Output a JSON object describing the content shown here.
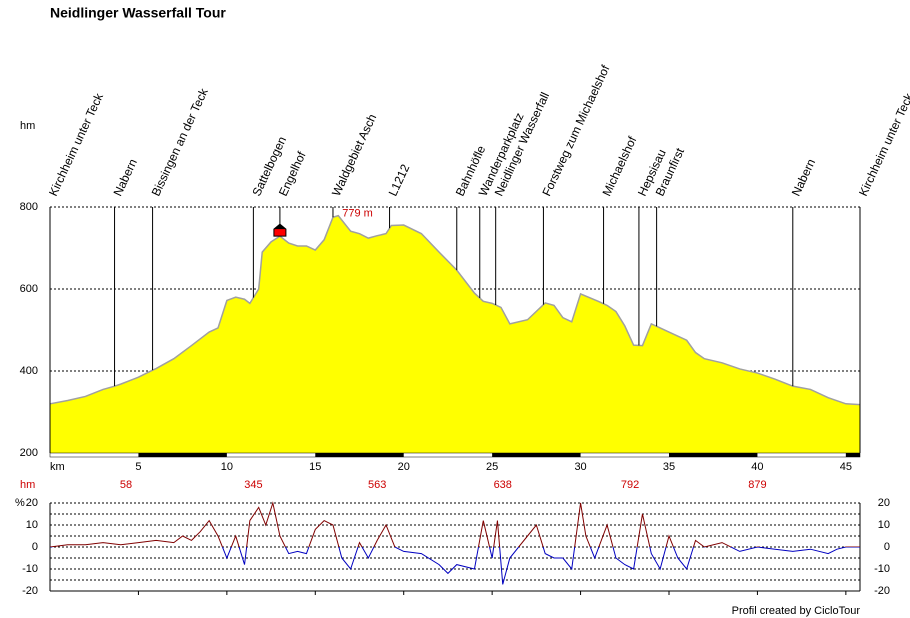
{
  "chart_data": [
    {
      "type": "area",
      "title": "Neidlinger Wasserfall Tour",
      "y_unit": "hm",
      "x_unit": "km",
      "x": [
        0,
        1,
        2,
        3,
        3.65,
        4,
        5,
        5.8,
        6,
        7,
        8,
        9,
        9.5,
        10,
        10.5,
        11,
        11.3,
        11.8,
        12,
        12.5,
        13,
        13.5,
        14,
        14.5,
        15,
        15.5,
        16,
        16.3,
        17,
        17.5,
        18,
        18.5,
        19,
        19.3,
        20,
        21,
        22,
        23,
        24,
        24.5,
        25,
        25.5,
        26,
        27,
        28,
        28.5,
        29,
        29.5,
        30,
        31,
        31.5,
        32,
        32.5,
        33,
        33.5,
        34,
        34.5,
        35,
        36,
        36.5,
        37,
        38,
        39,
        40,
        41,
        42,
        43,
        44,
        45,
        45.8
      ],
      "values": [
        320,
        328,
        338,
        355,
        363,
        368,
        385,
        402,
        406,
        430,
        462,
        495,
        505,
        572,
        580,
        575,
        565,
        600,
        690,
        715,
        729,
        712,
        705,
        705,
        695,
        720,
        775,
        779,
        741,
        735,
        724,
        730,
        735,
        755,
        756,
        735,
        690,
        646,
        590,
        570,
        565,
        555,
        515,
        525,
        566,
        560,
        530,
        520,
        588,
        570,
        560,
        545,
        510,
        463,
        462,
        515,
        505,
        495,
        475,
        445,
        430,
        420,
        405,
        395,
        380,
        363,
        355,
        335,
        320,
        318
      ],
      "color": "#ffff00",
      "line_color": "#a0a0a0",
      "xlim": [
        0,
        45.8
      ],
      "xticks": [
        5,
        10,
        15,
        20,
        25,
        30,
        35,
        40,
        45
      ],
      "ylim": [
        200,
        800
      ],
      "yticks": [
        200,
        400,
        600,
        800
      ],
      "grid": true,
      "max_label": {
        "x": 16.3,
        "value": 779,
        "label": "779 m"
      },
      "marker": {
        "x": 13,
        "value": 729,
        "color": "#ff0000"
      },
      "waypoints": [
        {
          "name": "Kirchheim unter Teck",
          "x": 0
        },
        {
          "name": "Nabern",
          "x": 3.65
        },
        {
          "name": "Bissingen an der Teck",
          "x": 5.8
        },
        {
          "name": "Sattelbogen",
          "x": 11.5
        },
        {
          "name": "Engelhof",
          "x": 13.0
        },
        {
          "name": "Waldgebiet Asch",
          "x": 16.0
        },
        {
          "name": "L1212",
          "x": 19.2
        },
        {
          "name": "Bahnhöfle",
          "x": 23.0
        },
        {
          "name": "Wanderparkplatz",
          "x": 24.3
        },
        {
          "name": "Neidlinger Wasserfall",
          "x": 25.2
        },
        {
          "name": "Forstweg zum Michaelshof",
          "x": 27.9
        },
        {
          "name": "Michaelshof",
          "x": 31.3
        },
        {
          "name": "Hepsisau",
          "x": 33.3
        },
        {
          "name": "Braunfirst",
          "x": 34.3
        },
        {
          "name": "Nabern",
          "x": 42.0
        },
        {
          "name": "Kirchheim unter Teck",
          "x": 45.8
        }
      ],
      "climb": {
        "label": "hm",
        "x": [
          4.3,
          11.5,
          18.5,
          25.6,
          32.8,
          40
        ],
        "values": [
          58,
          345,
          563,
          638,
          792,
          879
        ],
        "color": "#cc0000"
      }
    },
    {
      "type": "line",
      "y_unit": "%",
      "x": [
        0,
        1,
        2,
        3,
        4,
        5,
        6,
        7,
        7.5,
        8,
        8.5,
        9,
        9.5,
        10,
        10.5,
        11,
        11.3,
        11.8,
        12.2,
        12.6,
        13,
        13.5,
        14,
        14.5,
        15,
        15.5,
        16,
        16.5,
        17,
        17.5,
        18,
        18.5,
        19,
        19.5,
        20,
        21,
        22,
        22.5,
        23,
        24,
        24.5,
        25,
        25.3,
        25.6,
        26,
        26.5,
        27,
        27.5,
        28,
        28.5,
        29,
        29.5,
        30,
        30.3,
        30.8,
        31.5,
        32,
        32.5,
        33,
        33.5,
        34,
        34.5,
        35,
        35.5,
        36,
        36.5,
        37,
        38,
        39,
        40,
        41,
        42,
        43,
        44,
        44.5,
        45,
        45.8
      ],
      "values": [
        0,
        1,
        1,
        2,
        1,
        2,
        3,
        2,
        5,
        3,
        7,
        12,
        5,
        -5,
        5,
        -8,
        12,
        18,
        10,
        20,
        5,
        -3,
        -2,
        -3,
        8,
        12,
        10,
        -5,
        -10,
        2,
        -5,
        3,
        10,
        0,
        -2,
        -3,
        -8,
        -12,
        -8,
        -10,
        12,
        -5,
        12,
        -17,
        -5,
        0,
        5,
        10,
        -3,
        -5,
        -5,
        -10,
        20,
        5,
        -5,
        10,
        -5,
        -8,
        -10,
        15,
        -3,
        -10,
        5,
        -5,
        -10,
        3,
        0,
        2,
        -2,
        0,
        -1,
        -2,
        -1,
        -3,
        -1,
        0,
        0
      ],
      "color_positive": "#800000",
      "color_negative": "#0000c0",
      "xlim": [
        0,
        45.8
      ],
      "xticks": [
        5,
        10,
        15,
        20,
        25,
        30,
        35,
        40,
        45
      ],
      "ylim": [
        -20,
        20
      ],
      "yticks": [
        -20,
        -10,
        0,
        10,
        20
      ],
      "yminor": [
        -15,
        -5,
        5,
        15
      ],
      "grid": true
    }
  ],
  "footer": "Profil created by CicloTour"
}
